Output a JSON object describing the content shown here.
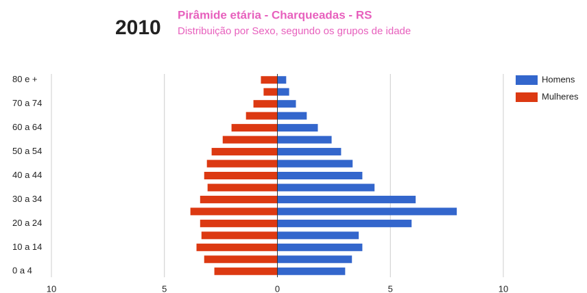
{
  "chart_data": {
    "type": "pyramid",
    "year": "2010",
    "title": "Pirâmide etária - Charqueadas - RS",
    "subtitle": "Distribuição por Sexo, segundo os grupos de idade",
    "categories": [
      "0 a 4",
      null,
      "10 a 14",
      null,
      "20 a 24",
      null,
      "30 a 34",
      null,
      "40 a 44",
      null,
      "50 a 54",
      null,
      "60 a 64",
      null,
      "70 a 74",
      null,
      "80 e +"
    ],
    "series": [
      {
        "name": "Homens",
        "color": "#3366cc",
        "values": [
          3.0,
          3.3,
          3.76,
          3.6,
          5.94,
          7.94,
          6.12,
          4.3,
          3.76,
          3.33,
          2.82,
          2.4,
          1.79,
          1.3,
          0.82,
          0.52,
          0.39
        ]
      },
      {
        "name": "Mulheres",
        "color": "#dc3912",
        "values": [
          -2.79,
          -3.24,
          -3.58,
          -3.36,
          -3.42,
          -3.85,
          -3.42,
          -3.09,
          -3.24,
          -3.12,
          -2.91,
          -2.42,
          -2.03,
          -1.39,
          -1.06,
          -0.61,
          -0.73
        ]
      }
    ],
    "xlim": [
      -10,
      10
    ],
    "xticks": [
      {
        "value": -10,
        "label": "10"
      },
      {
        "value": -5,
        "label": "5"
      },
      0,
      5,
      10
    ],
    "grid": true,
    "legend": "right"
  }
}
